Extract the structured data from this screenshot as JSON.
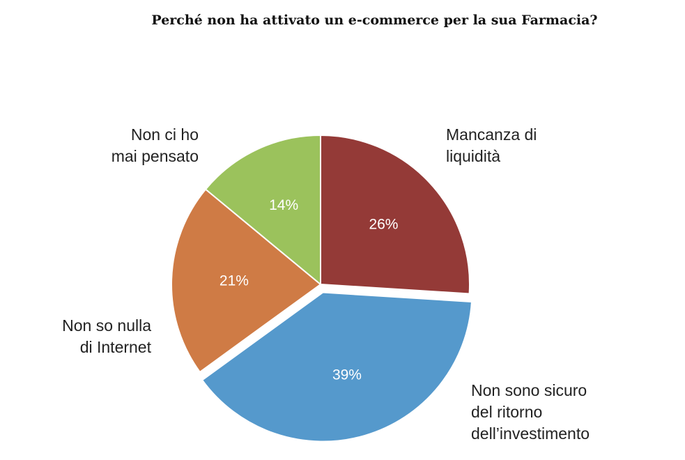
{
  "chart_data": {
    "type": "pie",
    "title": "Perché non ha attivato un e-commerce per la sua Farmacia?",
    "slices": [
      {
        "label": [
          "Mancanza di",
          "liquidità"
        ],
        "value": 26,
        "display": "26%",
        "color": "#943a37",
        "exploded": false
      },
      {
        "label": [
          "Non sono sicuro",
          "del ritorno",
          "dell’investimento"
        ],
        "value": 39,
        "display": "39%",
        "color": "#5599cc",
        "exploded": true
      },
      {
        "label": [
          "Non so nulla",
          "di Internet"
        ],
        "value": 21,
        "display": "21%",
        "color": "#cf7b45",
        "exploded": false
      },
      {
        "label": [
          "Non ci ho",
          "mai pensato"
        ],
        "value": 14,
        "display": "14%",
        "color": "#9bc25c",
        "exploded": false
      }
    ],
    "start": "12 o'clock",
    "direction": "clockwise",
    "legend": "none"
  }
}
